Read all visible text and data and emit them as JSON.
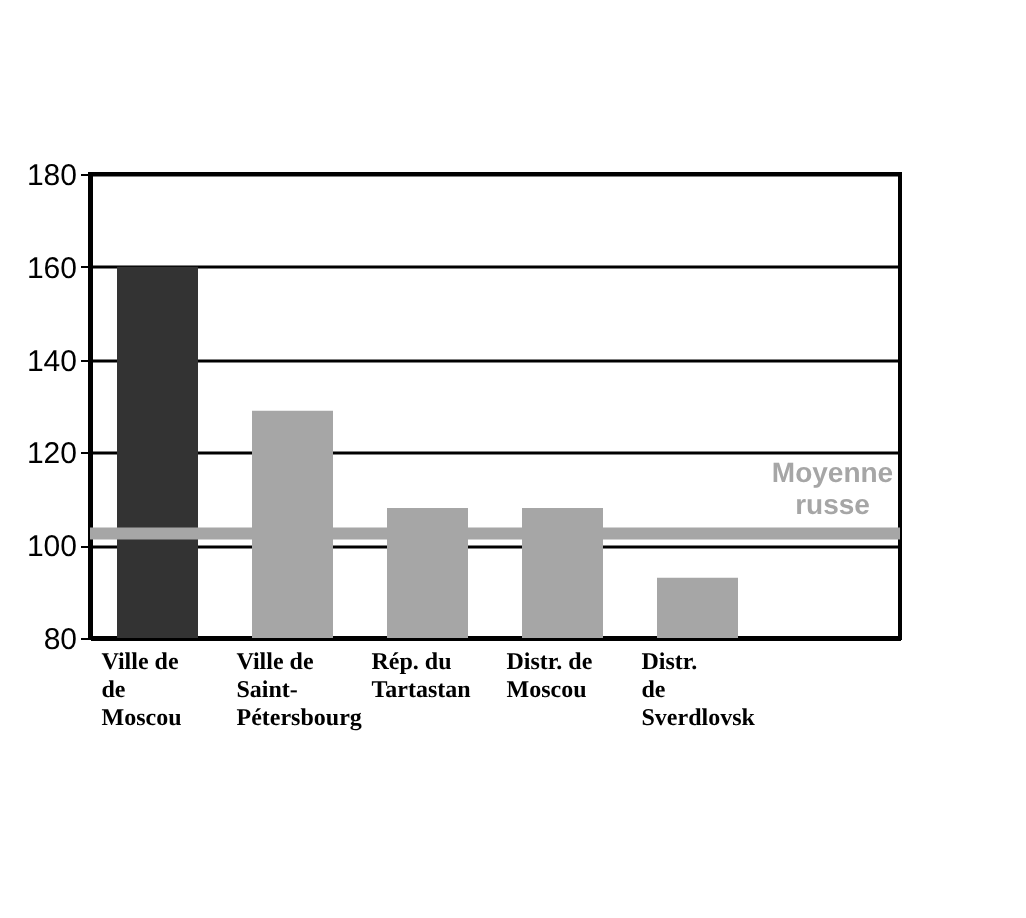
{
  "chart_data": {
    "type": "bar",
    "categories": [
      "Ville de\nde\nMoscou",
      "Ville de\nSaint-\nPétersbourg",
      "Rép. du\nTartastan",
      "Distr. de\nMoscou",
      "Distr.\nde\nSverdlovsk",
      null
    ],
    "values": [
      160,
      129,
      108,
      108,
      93,
      null
    ],
    "colors": [
      "#333333",
      "#a6a6a6",
      "#a6a6a6",
      "#a6a6a6",
      "#a6a6a6",
      "#a6a6a6"
    ],
    "ylim": [
      80,
      180
    ],
    "yticks": [
      80,
      100,
      120,
      140,
      160,
      180
    ],
    "grid": "y",
    "ref_lines": [
      {
        "axis": "y",
        "value": 102.5,
        "label": "Moyenne russe",
        "color": "#a6a6a6"
      }
    ]
  }
}
